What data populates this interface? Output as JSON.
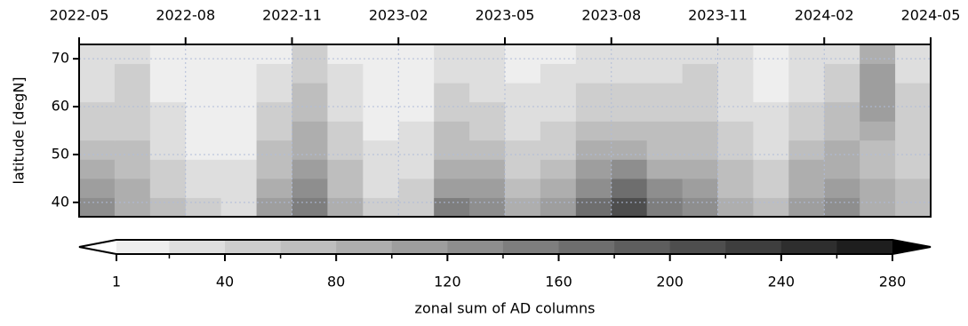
{
  "chart_data": {
    "type": "heatmap",
    "x": [
      "2022-05",
      "2022-06",
      "2022-07",
      "2022-08",
      "2022-09",
      "2022-10",
      "2022-11",
      "2022-12",
      "2023-01",
      "2023-02",
      "2023-03",
      "2023-04",
      "2023-05",
      "2023-06",
      "2023-07",
      "2023-08",
      "2023-09",
      "2023-10",
      "2023-11",
      "2023-12",
      "2024-01",
      "2024-02",
      "2024-03",
      "2024-04"
    ],
    "xlim": [
      "2022-05",
      "2024-05"
    ],
    "xticks": [
      "2022-05",
      "2022-08",
      "2022-11",
      "2023-02",
      "2023-05",
      "2023-08",
      "2023-11",
      "2024-02",
      "2024-05"
    ],
    "y": [
      39,
      43,
      47,
      51,
      55,
      59,
      63,
      67,
      71
    ],
    "ylim": [
      37,
      73
    ],
    "yticks": [
      40,
      50,
      60,
      70
    ],
    "ylabel": "latitude [degN]",
    "grid": true,
    "z": [
      [
        120,
        90,
        60,
        40,
        30,
        110,
        150,
        80,
        40,
        50,
        140,
        130,
        90,
        100,
        160,
        200,
        150,
        120,
        80,
        60,
        100,
        130,
        90,
        70
      ],
      [
        100,
        80,
        50,
        30,
        25,
        90,
        120,
        70,
        30,
        40,
        110,
        100,
        70,
        80,
        130,
        160,
        120,
        100,
        70,
        50,
        90,
        110,
        80,
        60
      ],
      [
        80,
        70,
        40,
        20,
        20,
        70,
        100,
        60,
        25,
        30,
        90,
        80,
        50,
        60,
        100,
        120,
        90,
        80,
        60,
        40,
        80,
        90,
        70,
        50
      ],
      [
        60,
        60,
        30,
        15,
        15,
        60,
        90,
        50,
        20,
        25,
        70,
        60,
        40,
        50,
        80,
        90,
        70,
        70,
        50,
        30,
        60,
        80,
        60,
        40
      ],
      [
        50,
        50,
        25,
        10,
        10,
        50,
        80,
        40,
        15,
        20,
        60,
        50,
        30,
        40,
        60,
        70,
        60,
        60,
        40,
        25,
        50,
        70,
        90,
        40
      ],
      [
        40,
        45,
        20,
        8,
        8,
        40,
        70,
        30,
        12,
        15,
        50,
        40,
        25,
        30,
        50,
        50,
        50,
        50,
        35,
        20,
        40,
        60,
        100,
        40
      ],
      [
        30,
        40,
        15,
        5,
        5,
        30,
        60,
        25,
        10,
        12,
        40,
        30,
        20,
        25,
        40,
        40,
        40,
        45,
        30,
        15,
        35,
        50,
        110,
        40
      ],
      [
        25,
        40,
        10,
        3,
        3,
        20,
        50,
        20,
        8,
        10,
        30,
        25,
        15,
        20,
        30,
        30,
        30,
        40,
        25,
        10,
        30,
        40,
        100,
        35
      ],
      [
        20,
        35,
        8,
        2,
        2,
        15,
        40,
        15,
        5,
        8,
        25,
        20,
        10,
        15,
        25,
        25,
        25,
        35,
        20,
        8,
        25,
        35,
        80,
        30
      ]
    ],
    "colorbar": {
      "levels": [
        1,
        20,
        40,
        60,
        80,
        100,
        120,
        140,
        160,
        180,
        200,
        220,
        240,
        260,
        280
      ],
      "ticks": [
        1,
        40,
        80,
        120,
        160,
        200,
        240,
        280
      ],
      "label": "zonal sum of AD columns",
      "extend": "both"
    }
  }
}
